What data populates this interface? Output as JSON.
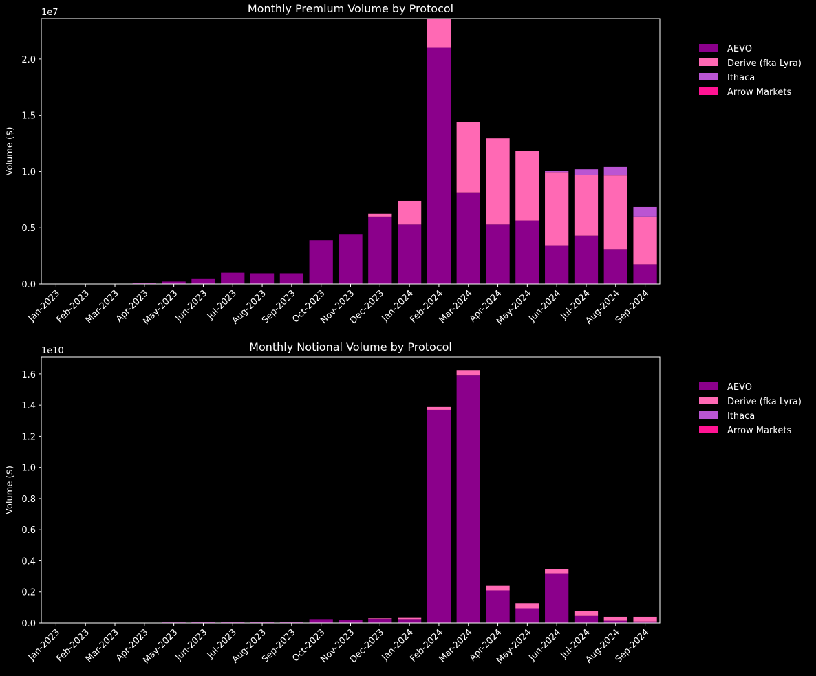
{
  "colors": {
    "AEVO": "#8b008b",
    "Derive (fka Lyra)": "#ff69b4",
    "Ithaca": "#ba55d3",
    "Arrow Markets": "#ff1493"
  },
  "chart_data": [
    {
      "type": "bar",
      "stacked": true,
      "title": "Monthly Premium Volume by Protocol",
      "xlabel": "",
      "ylabel": "Volume ($)",
      "offset_label": "1e7",
      "ylim": [
        0,
        23600000
      ],
      "yticks": [
        0,
        5000000,
        10000000,
        15000000,
        20000000
      ],
      "ytick_labels": [
        "0.0",
        "0.5",
        "1.0",
        "1.5",
        "2.0"
      ],
      "legend_position": "outside-right-top",
      "categories": [
        "Jan-2023",
        "Feb-2023",
        "Mar-2023",
        "Apr-2023",
        "May-2023",
        "Jun-2023",
        "Jul-2023",
        "Aug-2023",
        "Sep-2023",
        "Oct-2023",
        "Nov-2023",
        "Dec-2023",
        "Jan-2024",
        "Feb-2024",
        "Mar-2024",
        "Apr-2024",
        "May-2024",
        "Jun-2024",
        "Jul-2024",
        "Aug-2024",
        "Sep-2024"
      ],
      "series": [
        {
          "name": "AEVO",
          "values": [
            0,
            0,
            20000,
            80000,
            220000,
            500000,
            1000000,
            950000,
            950000,
            3900000,
            4450000,
            6000000,
            5300000,
            21000000,
            8150000,
            5300000,
            5650000,
            3450000,
            4300000,
            3100000,
            1750000
          ]
        },
        {
          "name": "Derive (fka Lyra)",
          "values": [
            0,
            0,
            0,
            0,
            0,
            0,
            0,
            0,
            0,
            0,
            0,
            250000,
            2100000,
            2600000,
            6250000,
            7650000,
            6150000,
            6500000,
            5400000,
            6550000,
            4250000
          ]
        },
        {
          "name": "Ithaca",
          "values": [
            0,
            0,
            0,
            0,
            0,
            0,
            0,
            0,
            0,
            0,
            0,
            0,
            0,
            0,
            0,
            0,
            50000,
            100000,
            500000,
            750000,
            850000
          ]
        },
        {
          "name": "Arrow Markets",
          "values": [
            0,
            0,
            0,
            0,
            0,
            0,
            0,
            0,
            0,
            0,
            0,
            0,
            0,
            0,
            0,
            0,
            0,
            0,
            0,
            0,
            0
          ]
        }
      ]
    },
    {
      "type": "bar",
      "stacked": true,
      "title": "Monthly Notional Volume by Protocol",
      "xlabel": "",
      "ylabel": "Volume ($)",
      "offset_label": "1e10",
      "ylim": [
        0,
        17100000000
      ],
      "yticks": [
        0,
        2000000000,
        4000000000,
        6000000000,
        8000000000,
        10000000000,
        12000000000,
        14000000000,
        16000000000
      ],
      "ytick_labels": [
        "0.0",
        "0.2",
        "0.4",
        "0.6",
        "0.8",
        "1.0",
        "1.2",
        "1.4",
        "1.6"
      ],
      "legend_position": "outside-right-top",
      "categories": [
        "Jan-2023",
        "Feb-2023",
        "Mar-2023",
        "Apr-2023",
        "May-2023",
        "Jun-2023",
        "Jul-2023",
        "Aug-2023",
        "Sep-2023",
        "Oct-2023",
        "Nov-2023",
        "Dec-2023",
        "Jan-2024",
        "Feb-2024",
        "Mar-2024",
        "Apr-2024",
        "May-2024",
        "Jun-2024",
        "Jul-2024",
        "Aug-2024",
        "Sep-2024"
      ],
      "series": [
        {
          "name": "AEVO",
          "values": [
            0,
            0,
            0,
            10000000,
            40000000,
            70000000,
            50000000,
            60000000,
            80000000,
            250000000,
            210000000,
            270000000,
            250000000,
            13700000000,
            15900000000,
            2100000000,
            950000000,
            3200000000,
            450000000,
            150000000,
            100000000
          ]
        },
        {
          "name": "Derive (fka Lyra)",
          "values": [
            0,
            0,
            0,
            0,
            0,
            0,
            0,
            0,
            0,
            0,
            0,
            30000000,
            120000000,
            180000000,
            350000000,
            300000000,
            320000000,
            270000000,
            330000000,
            250000000,
            300000000
          ]
        },
        {
          "name": "Ithaca",
          "values": [
            0,
            0,
            0,
            0,
            0,
            0,
            0,
            0,
            0,
            0,
            0,
            0,
            0,
            0,
            0,
            0,
            0,
            0,
            0,
            0,
            0
          ]
        },
        {
          "name": "Arrow Markets",
          "values": [
            0,
            0,
            0,
            0,
            0,
            0,
            0,
            0,
            0,
            0,
            0,
            0,
            0,
            0,
            0,
            0,
            0,
            0,
            0,
            0,
            0
          ]
        }
      ]
    }
  ]
}
